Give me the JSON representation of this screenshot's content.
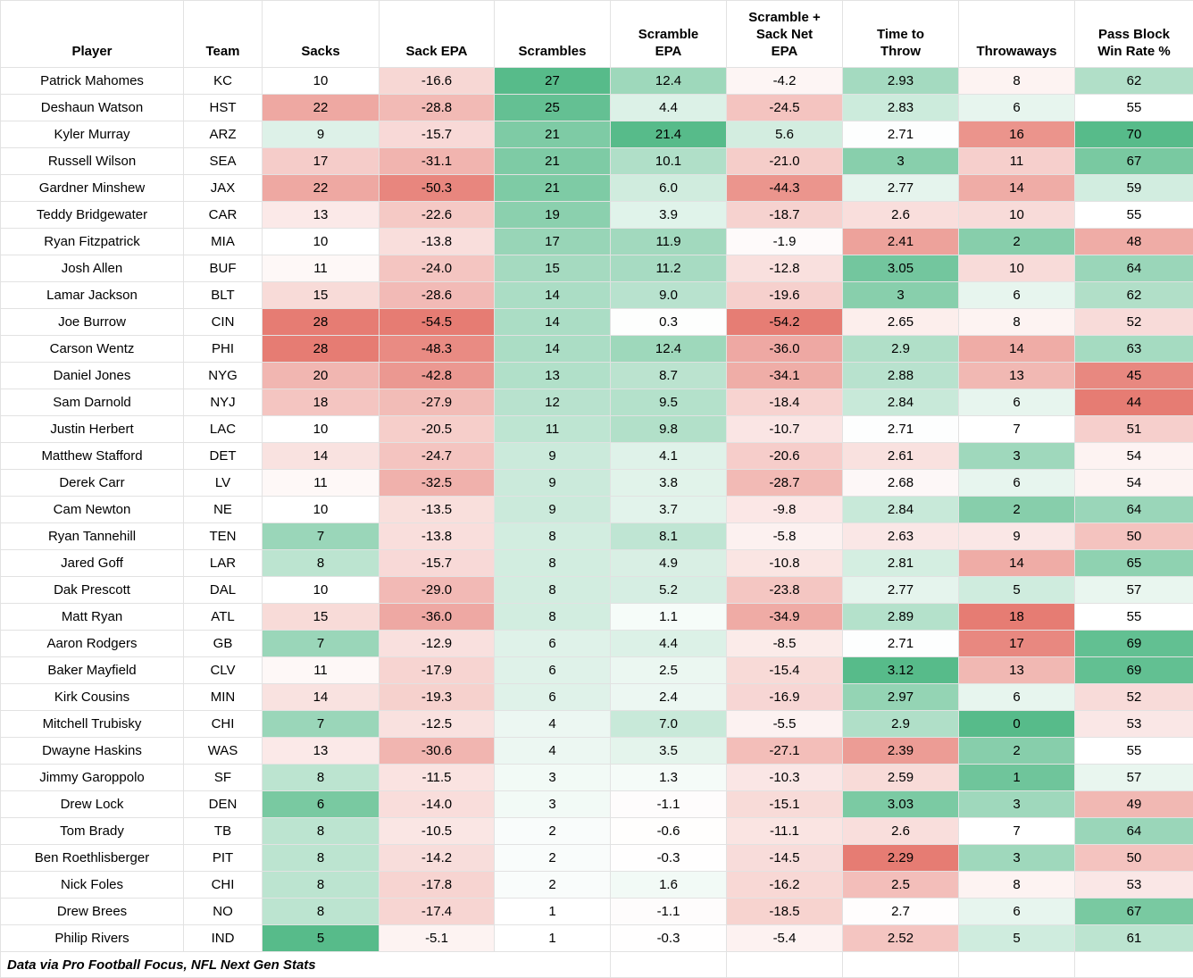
{
  "chart_data": {
    "type": "table",
    "title": "",
    "columns": [
      {
        "key": "player",
        "label": "Player"
      },
      {
        "key": "team",
        "label": "Team"
      },
      {
        "key": "sacks",
        "label": "Sacks"
      },
      {
        "key": "sack_epa",
        "label": "Sack EPA"
      },
      {
        "key": "scrambles",
        "label": "Scrambles"
      },
      {
        "key": "scramble_epa",
        "label": "Scramble\nEPA"
      },
      {
        "key": "net_epa",
        "label": "Scramble +\nSack Net\nEPA"
      },
      {
        "key": "time_to_throw",
        "label": "Time to\nThrow"
      },
      {
        "key": "throwaways",
        "label": "Throwaways"
      },
      {
        "key": "pass_block_win_rate",
        "label": "Pass Block\nWin Rate %"
      }
    ],
    "rows": [
      [
        "Patrick Mahomes",
        "KC",
        "10",
        "-16.6",
        "27",
        "12.4",
        "-4.2",
        "2.93",
        "8",
        "62"
      ],
      [
        "Deshaun Watson",
        "HST",
        "22",
        "-28.8",
        "25",
        "4.4",
        "-24.5",
        "2.83",
        "6",
        "55"
      ],
      [
        "Kyler Murray",
        "ARZ",
        "9",
        "-15.7",
        "21",
        "21.4",
        "5.6",
        "2.71",
        "16",
        "70"
      ],
      [
        "Russell Wilson",
        "SEA",
        "17",
        "-31.1",
        "21",
        "10.1",
        "-21.0",
        "3",
        "11",
        "67"
      ],
      [
        "Gardner Minshew",
        "JAX",
        "22",
        "-50.3",
        "21",
        "6.0",
        "-44.3",
        "2.77",
        "14",
        "59"
      ],
      [
        "Teddy Bridgewater",
        "CAR",
        "13",
        "-22.6",
        "19",
        "3.9",
        "-18.7",
        "2.6",
        "10",
        "55"
      ],
      [
        "Ryan Fitzpatrick",
        "MIA",
        "10",
        "-13.8",
        "17",
        "11.9",
        "-1.9",
        "2.41",
        "2",
        "48"
      ],
      [
        "Josh Allen",
        "BUF",
        "11",
        "-24.0",
        "15",
        "11.2",
        "-12.8",
        "3.05",
        "10",
        "64"
      ],
      [
        "Lamar Jackson",
        "BLT",
        "15",
        "-28.6",
        "14",
        "9.0",
        "-19.6",
        "3",
        "6",
        "62"
      ],
      [
        "Joe Burrow",
        "CIN",
        "28",
        "-54.5",
        "14",
        "0.3",
        "-54.2",
        "2.65",
        "8",
        "52"
      ],
      [
        "Carson Wentz",
        "PHI",
        "28",
        "-48.3",
        "14",
        "12.4",
        "-36.0",
        "2.9",
        "14",
        "63"
      ],
      [
        "Daniel Jones",
        "NYG",
        "20",
        "-42.8",
        "13",
        "8.7",
        "-34.1",
        "2.88",
        "13",
        "45"
      ],
      [
        "Sam Darnold",
        "NYJ",
        "18",
        "-27.9",
        "12",
        "9.5",
        "-18.4",
        "2.84",
        "6",
        "44"
      ],
      [
        "Justin Herbert",
        "LAC",
        "10",
        "-20.5",
        "11",
        "9.8",
        "-10.7",
        "2.71",
        "7",
        "51"
      ],
      [
        "Matthew Stafford",
        "DET",
        "14",
        "-24.7",
        "9",
        "4.1",
        "-20.6",
        "2.61",
        "3",
        "54"
      ],
      [
        "Derek Carr",
        "LV",
        "11",
        "-32.5",
        "9",
        "3.8",
        "-28.7",
        "2.68",
        "6",
        "54"
      ],
      [
        "Cam Newton",
        "NE",
        "10",
        "-13.5",
        "9",
        "3.7",
        "-9.8",
        "2.84",
        "2",
        "64"
      ],
      [
        "Ryan Tannehill",
        "TEN",
        "7",
        "-13.8",
        "8",
        "8.1",
        "-5.8",
        "2.63",
        "9",
        "50"
      ],
      [
        "Jared Goff",
        "LAR",
        "8",
        "-15.7",
        "8",
        "4.9",
        "-10.8",
        "2.81",
        "14",
        "65"
      ],
      [
        "Dak Prescott",
        "DAL",
        "10",
        "-29.0",
        "8",
        "5.2",
        "-23.8",
        "2.77",
        "5",
        "57"
      ],
      [
        "Matt Ryan",
        "ATL",
        "15",
        "-36.0",
        "8",
        "1.1",
        "-34.9",
        "2.89",
        "18",
        "55"
      ],
      [
        "Aaron Rodgers",
        "GB",
        "7",
        "-12.9",
        "6",
        "4.4",
        "-8.5",
        "2.71",
        "17",
        "69"
      ],
      [
        "Baker Mayfield",
        "CLV",
        "11",
        "-17.9",
        "6",
        "2.5",
        "-15.4",
        "3.12",
        "13",
        "69"
      ],
      [
        "Kirk Cousins",
        "MIN",
        "14",
        "-19.3",
        "6",
        "2.4",
        "-16.9",
        "2.97",
        "6",
        "52"
      ],
      [
        "Mitchell Trubisky",
        "CHI",
        "7",
        "-12.5",
        "4",
        "7.0",
        "-5.5",
        "2.9",
        "0",
        "53"
      ],
      [
        "Dwayne Haskins",
        "WAS",
        "13",
        "-30.6",
        "4",
        "3.5",
        "-27.1",
        "2.39",
        "2",
        "55"
      ],
      [
        "Jimmy Garoppolo",
        "SF",
        "8",
        "-11.5",
        "3",
        "1.3",
        "-10.3",
        "2.59",
        "1",
        "57"
      ],
      [
        "Drew Lock",
        "DEN",
        "6",
        "-14.0",
        "3",
        "-1.1",
        "-15.1",
        "3.03",
        "3",
        "49"
      ],
      [
        "Tom Brady",
        "TB",
        "8",
        "-10.5",
        "2",
        "-0.6",
        "-11.1",
        "2.6",
        "7",
        "64"
      ],
      [
        "Ben Roethlisberger",
        "PIT",
        "8",
        "-14.2",
        "2",
        "-0.3",
        "-14.5",
        "2.29",
        "3",
        "50"
      ],
      [
        "Nick Foles",
        "CHI",
        "8",
        "-17.8",
        "2",
        "1.6",
        "-16.2",
        "2.5",
        "8",
        "53"
      ],
      [
        "Drew Brees",
        "NO",
        "8",
        "-17.4",
        "1",
        "-1.1",
        "-18.5",
        "2.7",
        "6",
        "67"
      ],
      [
        "Philip Rivers",
        "IND",
        "5",
        "-5.1",
        "1",
        "-0.3",
        "-5.4",
        "2.52",
        "5",
        "61"
      ]
    ],
    "source_note": "Data via Pro Football Focus, NFL Next Gen Stats",
    "heatmap_colors": {
      "green": "#57BB8A",
      "red": "#E67C73",
      "neutral": "#FFFFFF"
    },
    "heatmap_scales": {
      "sacks": {
        "min": 5,
        "mid": 10,
        "max": 28,
        "low_color": "green",
        "high_color": "red"
      },
      "sack_epa": {
        "min": -54.5,
        "mid": 0,
        "max": 21.4,
        "low_color": "red",
        "high_color": "green"
      },
      "scrambles": {
        "min": 1,
        "max": 27,
        "low_color": "neutral",
        "high_color": "green"
      },
      "scramble_epa": {
        "min": -54.5,
        "mid": 0,
        "max": 21.4,
        "low_color": "red",
        "high_color": "green"
      },
      "net_epa": {
        "min": -54.5,
        "mid": 0,
        "max": 21.4,
        "low_color": "red",
        "high_color": "green"
      },
      "time_to_throw": {
        "min": 2.29,
        "mid": 2.705,
        "max": 3.12,
        "low_color": "red",
        "high_color": "green"
      },
      "throwaways": {
        "min": 0,
        "mid": 7,
        "max": 18,
        "low_color": "green",
        "high_color": "red"
      },
      "pass_block_win_rate": {
        "min": 44,
        "mid": 55,
        "max": 70,
        "low_color": "red",
        "high_color": "green"
      }
    }
  }
}
